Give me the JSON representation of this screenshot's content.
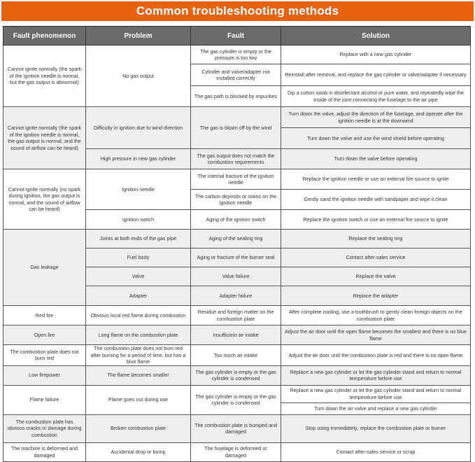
{
  "title": "Common troubleshooting methods",
  "colors": {
    "title_bar": "#e8620f",
    "header": "#6b6b6b",
    "alt_row": "#efefef"
  },
  "headers": [
    "Fault phenomenon",
    "Problem",
    "Fault",
    "Solution"
  ],
  "groups": [
    {
      "phenomenon": "Cannot ignite normally (the spark of the ignition needle is normal, but the gas output is abnormal)",
      "problems": [
        {
          "problem": "No gas output",
          "faults": [
            {
              "fault": "The gas cylinder is empty or the pressure is too low",
              "solutions": [
                "Replace with a new gas cylinder"
              ]
            },
            {
              "fault": "Cylinder and valve/adapter not installed correctly",
              "solutions": [
                "Reinstall after removal, and replace the gas cylinder or valve/adapter if necessary"
              ]
            },
            {
              "fault": "The gas path is blocked by impurities",
              "solutions": [
                "Dip a cotton swab in disinfectant alcohol or pure water, and repeatedly wipe the inside of the joint connecting the fuselage to the air pipe"
              ]
            }
          ]
        }
      ]
    },
    {
      "phenomenon": "Cannot ignite normally (the spark of the ignition needle is normal, the gas output is normal, and the sound of airflow can be heard)",
      "problems": [
        {
          "problem": "Difficulty in ignition due to wind direction",
          "faults": [
            {
              "fault": "The gas is blown off by the wind",
              "solutions": [
                "Turn down the valve, adjust the direction of the fuselage, and operate after the ignition needle is at the downwind",
                "Turn down the valve and use the wind shield before operating"
              ]
            }
          ]
        },
        {
          "problem": "High pressure in new gas cylinder",
          "faults": [
            {
              "fault": "The gas output does not match the combustion requirements",
              "solutions": [
                "Turn down the valve before operating"
              ]
            }
          ]
        }
      ]
    },
    {
      "phenomenon": "Cannot ignite normally (no spark during ignition, the gas output is normal, and the sound of airflow can be heard)",
      "problems": [
        {
          "problem": "Ignition needle",
          "faults": [
            {
              "fault": "The internal fracture of the ignition needle",
              "solutions": [
                "Replace the ignition needle or use an external fire source to ignite"
              ]
            },
            {
              "fault": "The carbon deposits or stains on the ignition needle",
              "solutions": [
                "Gently sand the ignition needle with sandpaper and wipe it clean"
              ]
            }
          ]
        },
        {
          "problem": "Ignition switch",
          "faults": [
            {
              "fault": "Aging of the ignition switch",
              "solutions": [
                "Replace the ignition switch or use an external fire source to ignite"
              ]
            }
          ]
        }
      ]
    },
    {
      "phenomenon": "Gas leakage",
      "problems": [
        {
          "problem": "Joints at both ends of the gas pipe",
          "faults": [
            {
              "fault": "Aging of the sealing ring",
              "solutions": [
                "Replace the sealing ring"
              ]
            }
          ]
        },
        {
          "problem": "Fuel body",
          "faults": [
            {
              "fault": "Aging or fracture of the burner seal",
              "solutions": [
                "Contact after-sales service"
              ]
            }
          ]
        },
        {
          "problem": "Valve",
          "faults": [
            {
              "fault": "Valve failure",
              "solutions": [
                "Replace the valve"
              ]
            }
          ]
        },
        {
          "problem": "Adapter",
          "faults": [
            {
              "fault": "Adapter failure",
              "solutions": [
                "Replace the adapter"
              ]
            }
          ]
        }
      ]
    },
    {
      "phenomenon": "Red fire",
      "problems": [
        {
          "problem": "Obvious local red flame during combustion",
          "faults": [
            {
              "fault": "Residue and foreign matter on the combustion plate",
              "solutions": [
                "After complete cooling, use a toothbrush to gently clean foreign objects on the combustion plate"
              ]
            }
          ]
        }
      ]
    },
    {
      "phenomenon": "Open fire",
      "problems": [
        {
          "problem": "Long flame on the combustion plate",
          "faults": [
            {
              "fault": "Insufficient air intake",
              "solutions": [
                "Adjust the air door until the open flame becomes the smallest and there is no blue flame"
              ]
            }
          ]
        }
      ]
    },
    {
      "phenomenon": "The combustion plate does not burn red",
      "problems": [
        {
          "problem": "The combustion plate does not burn red after burning for a period of time, but has a blue flame",
          "faults": [
            {
              "fault": "Too much air intake",
              "solutions": [
                "Adjust the air door until the combustion plate is red and there is no open flame"
              ]
            }
          ]
        }
      ]
    },
    {
      "phenomenon": "Low firepower",
      "problems": [
        {
          "problem": "The flame becomes smaller",
          "faults": [
            {
              "fault": "The gas cylinder is empty or the gas cylinder is condensed",
              "solutions": [
                "Replace a new gas cylinder or let the gas cylinder stand and return to normal temperature before use"
              ]
            }
          ]
        }
      ]
    },
    {
      "phenomenon": "Flame failure",
      "problems": [
        {
          "problem": "Flame goes out during use",
          "faults": [
            {
              "fault": "The gas cylinder is empty or the gas cylinder is condensed",
              "solutions": [
                "Replace a new gas cylinder or let the gas cylinder stand and return to normal temperature before use",
                "Turn down the air valve and replace a new gas cylinder"
              ]
            }
          ]
        }
      ]
    },
    {
      "phenomenon": "The combustion plate has obvious cracks or damage during combustion",
      "problems": [
        {
          "problem": "Broken combustion plate",
          "faults": [
            {
              "fault": "The combustion plate is bumped and damaged",
              "solutions": [
                "Stop using immediately, replace the combustion plate or burner"
              ]
            }
          ]
        }
      ]
    },
    {
      "phenomenon": "The machine is deformed and damaged",
      "problems": [
        {
          "problem": "Accidental drop or bump",
          "faults": [
            {
              "fault": "The fuselage is deformed or damaged",
              "solutions": [
                "Contact after-sales service or scrap"
              ]
            }
          ]
        }
      ]
    }
  ]
}
